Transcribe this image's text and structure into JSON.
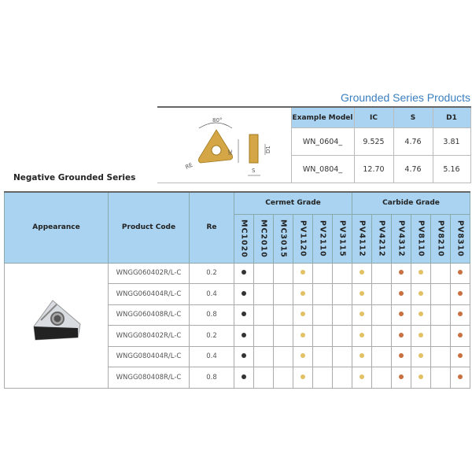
{
  "top_title": "Grounded Series Products",
  "section_title": "Negative Grounded Series",
  "diagram": {
    "angle": "80°",
    "labels": [
      "RE",
      "IC",
      "D1",
      "S"
    ]
  },
  "spec_table": {
    "headers": [
      "Example Model",
      "IC",
      "S",
      "D1"
    ],
    "rows": [
      [
        "WN_0604_",
        "9.525",
        "4.76",
        "3.81"
      ],
      [
        "WN_0804_",
        "12.70",
        "4.76",
        "5.16"
      ]
    ]
  },
  "main_table": {
    "headers": {
      "appearance": "Appearance",
      "product_code": "Product Code",
      "re": "Re",
      "cermet": "Cermet Grade",
      "carbide": "Carbide Grade"
    },
    "grades": [
      "MC1020",
      "MC2010",
      "MC3015",
      "PV1120",
      "PV2110",
      "PV3115",
      "PV4112",
      "PV4212",
      "PV4312",
      "PV8110",
      "PV8210",
      "PV8310"
    ],
    "rows": [
      {
        "code": "WNGG060402R/L-C",
        "re": "0.2",
        "marks": [
          "dark",
          "",
          "",
          "yellow",
          "",
          "",
          "yellow",
          "",
          "orange",
          "yellow",
          "",
          "orange"
        ]
      },
      {
        "code": "WNGG060404R/L-C",
        "re": "0.4",
        "marks": [
          "dark",
          "",
          "",
          "yellow",
          "",
          "",
          "yellow",
          "",
          "orange",
          "yellow",
          "",
          "orange"
        ]
      },
      {
        "code": "WNGG060408R/L-C",
        "re": "0.8",
        "marks": [
          "dark",
          "",
          "",
          "yellow",
          "",
          "",
          "yellow",
          "",
          "orange",
          "yellow",
          "",
          "orange"
        ]
      },
      {
        "code": "WNGG080402R/L-C",
        "re": "0.2",
        "marks": [
          "dark",
          "",
          "",
          "yellow",
          "",
          "",
          "yellow",
          "",
          "orange",
          "yellow",
          "",
          "orange"
        ]
      },
      {
        "code": "WNGG080404R/L-C",
        "re": "0.4",
        "marks": [
          "dark",
          "",
          "",
          "yellow",
          "",
          "",
          "yellow",
          "",
          "orange",
          "yellow",
          "",
          "orange"
        ]
      },
      {
        "code": "WNGG080408R/L-C",
        "re": "0.8",
        "marks": [
          "dark",
          "",
          "",
          "yellow",
          "",
          "",
          "yellow",
          "",
          "orange",
          "yellow",
          "",
          "orange"
        ]
      }
    ]
  },
  "colors": {
    "dark": "#333333",
    "yellow": "#e2c064",
    "orange": "#c8703f",
    "header": "#a9d3f0",
    "title": "#3a7fc1"
  }
}
